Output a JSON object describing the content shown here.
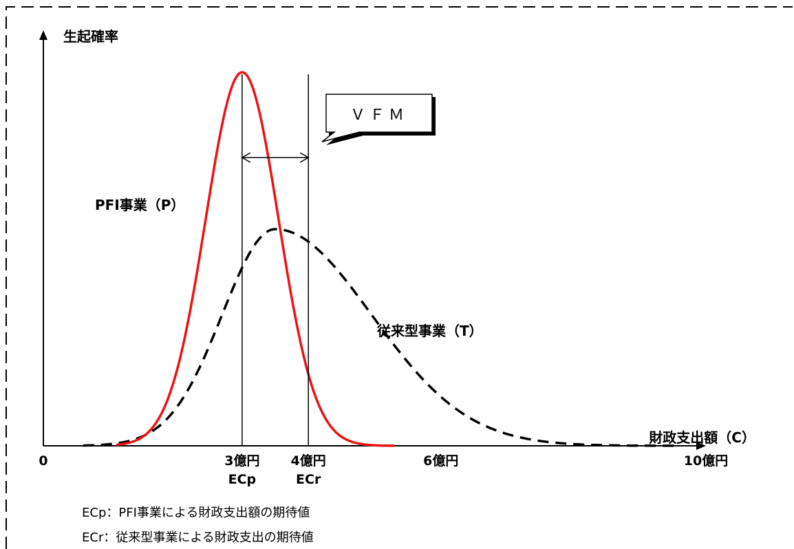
{
  "chart_data": {
    "type": "line",
    "ylabel": "生起確率",
    "xlabel": "財政支出額（C）",
    "xlim": [
      0,
      10.5
    ],
    "x_ticks": [
      {
        "x": 0,
        "label": "0"
      },
      {
        "x": 3,
        "label": "3億円"
      },
      {
        "x": 4,
        "label": "4億円"
      },
      {
        "x": 6,
        "label": "6億円"
      },
      {
        "x": 10,
        "label": "10億円"
      }
    ],
    "markers": [
      {
        "x": 3,
        "label": "ECp"
      },
      {
        "x": 4,
        "label": "ECr"
      }
    ],
    "series": [
      {
        "name": "PFI事業（P）",
        "color": "#ee1111",
        "style": "solid",
        "mean": 3.0,
        "peak": 1.0,
        "sigma_left": 0.55,
        "sigma_right": 0.55,
        "x_range": [
          1.1,
          5.3
        ]
      },
      {
        "name": "従来型事業（T）",
        "color": "#000000",
        "style": "dashed",
        "mean": 3.5,
        "peak": 0.58,
        "sigma_left": 0.8,
        "sigma_right": 1.45,
        "x_range": [
          0.6,
          9.6
        ]
      }
    ],
    "annotations": {
      "callout": "ＶＦＭ"
    },
    "notes": [
      "ECp：PFI事業による財政支出額の期待値",
      "ECr：従来型事業による財政支出の期待値"
    ],
    "grid": false,
    "legend": "none"
  }
}
